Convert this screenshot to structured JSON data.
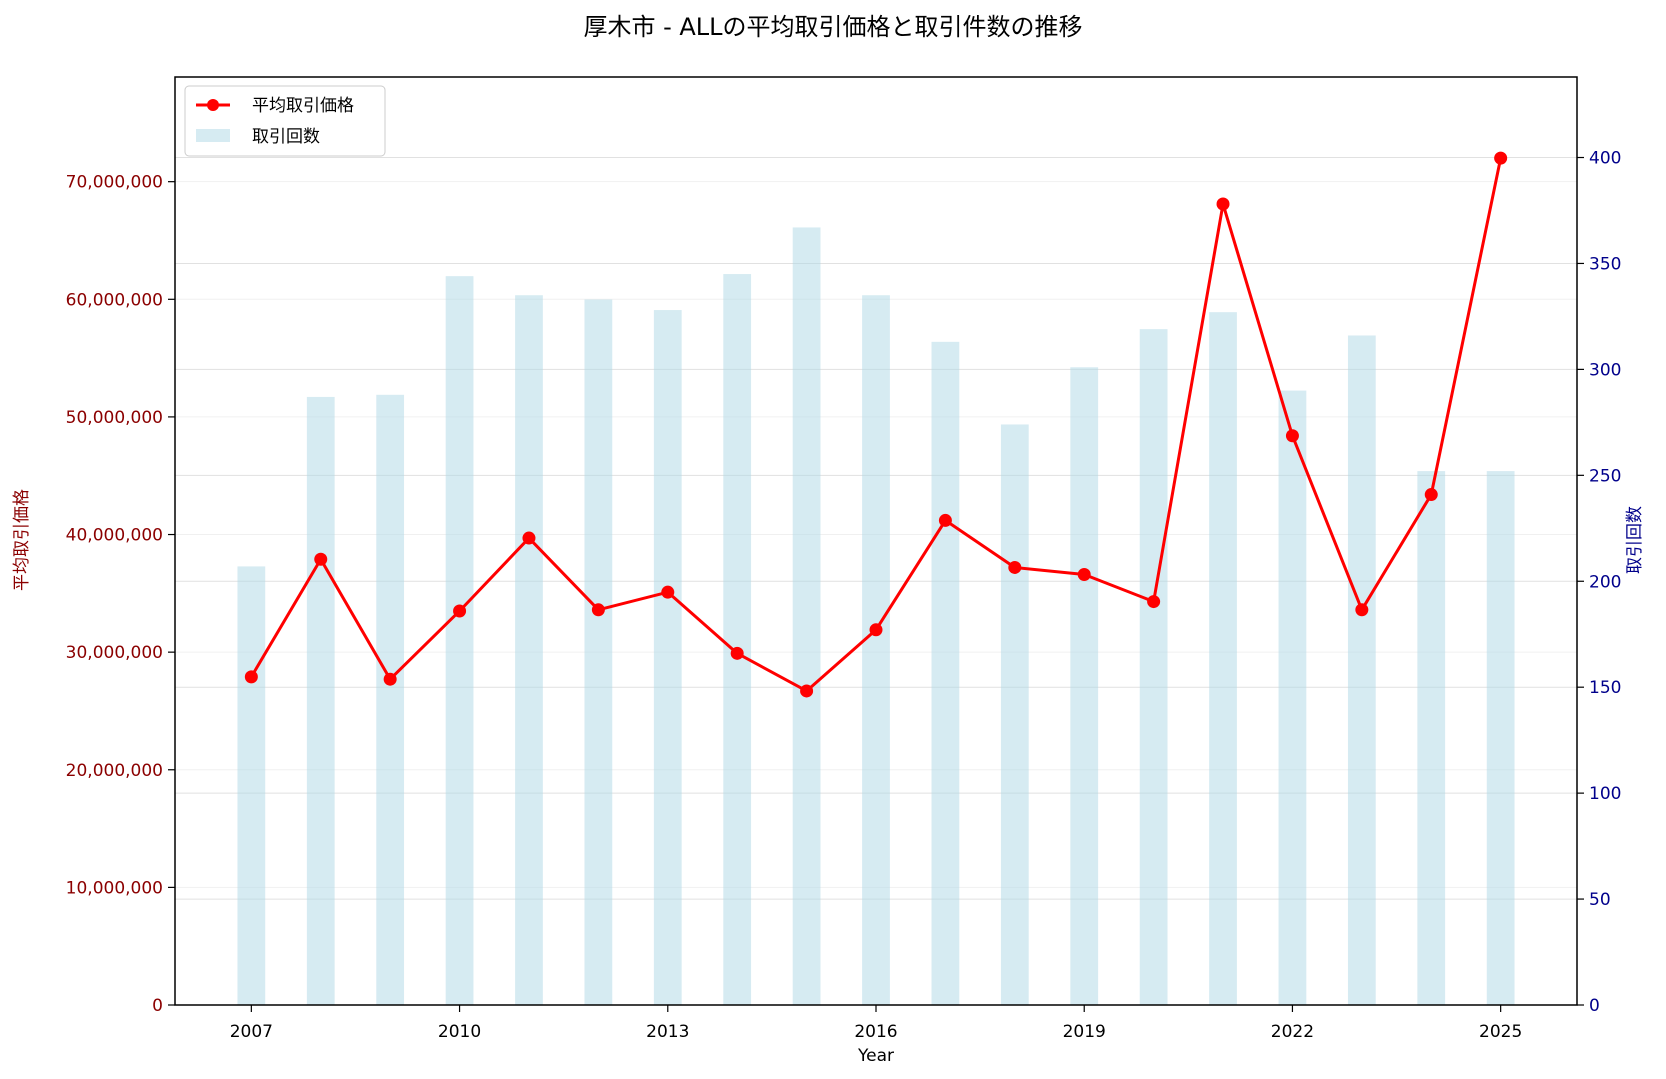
{
  "chart_data": {
    "type": "bar+line",
    "title": "厚木市 - ALLの平均取引価格と取引件数の推移",
    "xlabel": "Year",
    "ylabel_left": "平均取引価格",
    "ylabel_right": "取引回数",
    "x": [
      2007,
      2008,
      2009,
      2010,
      2011,
      2012,
      2013,
      2014,
      2015,
      2016,
      2017,
      2018,
      2019,
      2020,
      2021,
      2022,
      2023,
      2024,
      2025
    ],
    "x_ticks": [
      "2007",
      "2010",
      "2013",
      "2016",
      "2019",
      "2022",
      "2025"
    ],
    "y_left_ticks": [
      "0",
      "10,000,000",
      "20,000,000",
      "30,000,000",
      "40,000,000",
      "50,000,000",
      "60,000,000",
      "70,000,000"
    ],
    "y_right_ticks": [
      "0",
      "50",
      "100",
      "150",
      "200",
      "250",
      "300",
      "350",
      "400"
    ],
    "ylim_left": [
      0,
      78900000
    ],
    "ylim_right": [
      0,
      438
    ],
    "xlim": [
      2005.9,
      2026.1
    ],
    "series": [
      {
        "name": "平均取引価格",
        "kind": "line",
        "axis": "left",
        "color": "#ff0000",
        "values": [
          27900000,
          37900000,
          27700000,
          33500000,
          39700000,
          33600000,
          35100000,
          29900000,
          26700000,
          31900000,
          41200000,
          37200000,
          36600000,
          34300000,
          68100000,
          48400000,
          33600000,
          43400000,
          72000000
        ]
      },
      {
        "name": "取引回数",
        "kind": "bar",
        "axis": "right",
        "color": "#add8e6",
        "values": [
          207,
          287,
          288,
          344,
          335,
          333,
          328,
          345,
          367,
          335,
          313,
          274,
          301,
          319,
          327,
          290,
          316,
          252,
          252
        ]
      }
    ],
    "legend_position": "top-left",
    "grid": true
  }
}
